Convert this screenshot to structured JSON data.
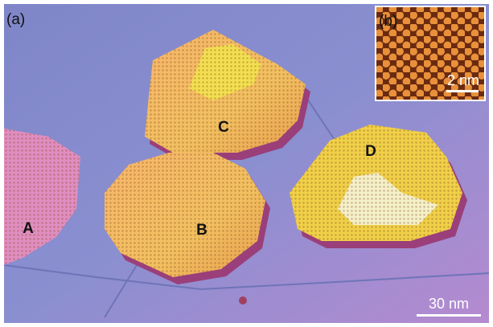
{
  "panel_a": {
    "label": "(a)",
    "islands": [
      {
        "label": "A"
      },
      {
        "label": "B"
      },
      {
        "label": "C"
      },
      {
        "label": "D"
      }
    ],
    "scale_bar": "30 nm"
  },
  "panel_b": {
    "label": "(b)",
    "scale_bar": "2 nm"
  }
}
